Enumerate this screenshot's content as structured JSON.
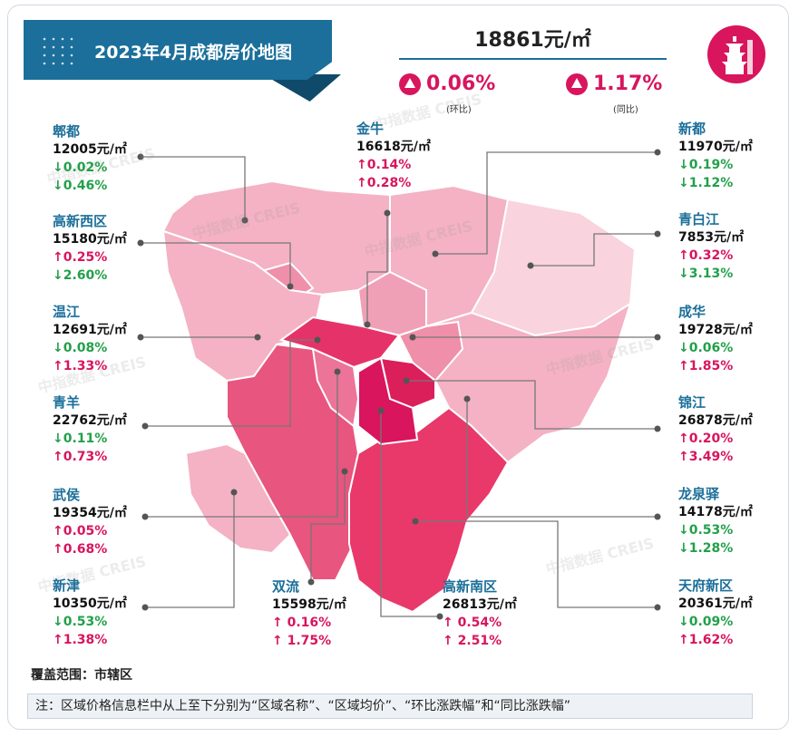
{
  "title": "2023年4月成都房价地图",
  "average_price": "18861元/㎡",
  "mom": {
    "value": "0.06%",
    "label": "(环比)"
  },
  "yoy": {
    "value": "1.17%",
    "label": "(同比)"
  },
  "watermark": "中指数据 CREIS",
  "coverage": "覆盖范围：市辖区",
  "note": "注：区域价格信息栏中从上至下分别为“区域名称”、“区域均价”、“环比涨跌幅”和“同比涨跌幅”",
  "colors": {
    "accent": "#d8155d",
    "title_bg": "#1b6f9a",
    "up": "#d8155d",
    "down": "#22a04a"
  },
  "chart_data": {
    "type": "choropleth-map",
    "unit": "元/㎡",
    "regions": [
      {
        "name": "郫都",
        "price": "12005元/㎡",
        "mom": "↓0.02%",
        "mom_dir": "down",
        "yoy": "↓0.46%",
        "yoy_dir": "down"
      },
      {
        "name": "高新西区",
        "price": "15180元/㎡",
        "mom": "↑0.25%",
        "mom_dir": "up",
        "yoy": "↓2.60%",
        "yoy_dir": "down"
      },
      {
        "name": "温江",
        "price": "12691元/㎡",
        "mom": "↓0.08%",
        "mom_dir": "down",
        "yoy": "↑1.33%",
        "yoy_dir": "up"
      },
      {
        "name": "青羊",
        "price": "22762元/㎡",
        "mom": "↓0.11%",
        "mom_dir": "down",
        "yoy": "↑0.73%",
        "yoy_dir": "up"
      },
      {
        "name": "武侯",
        "price": "19354元/㎡",
        "mom": "↑0.05%",
        "mom_dir": "up",
        "yoy": "↑0.68%",
        "yoy_dir": "up"
      },
      {
        "name": "新津",
        "price": "10350元/㎡",
        "mom": "↓0.53%",
        "mom_dir": "down",
        "yoy": "↑1.38%",
        "yoy_dir": "up"
      },
      {
        "name": "金牛",
        "price": "16618元/㎡",
        "mom": "↑0.14%",
        "mom_dir": "up",
        "yoy": "↑0.28%",
        "yoy_dir": "up"
      },
      {
        "name": "双流",
        "price": "15598元/㎡",
        "mom": "↑ 0.16%",
        "mom_dir": "up",
        "yoy": "↑ 1.75%",
        "yoy_dir": "up"
      },
      {
        "name": "高新南区",
        "price": "26813元/㎡",
        "mom": "↑ 0.54%",
        "mom_dir": "up",
        "yoy": "↑ 2.51%",
        "yoy_dir": "up"
      },
      {
        "name": "新都",
        "price": "11970元/㎡",
        "mom": "↓0.19%",
        "mom_dir": "down",
        "yoy": "↓1.12%",
        "yoy_dir": "down"
      },
      {
        "name": "青白江",
        "price": "7853元/㎡",
        "mom": "↑0.32%",
        "mom_dir": "up",
        "yoy": "↓3.13%",
        "yoy_dir": "down"
      },
      {
        "name": "成华",
        "price": "19728元/㎡",
        "mom": "↓0.06%",
        "mom_dir": "down",
        "yoy": "↑1.85%",
        "yoy_dir": "up"
      },
      {
        "name": "锦江",
        "price": "26878元/㎡",
        "mom": "↑0.20%",
        "mom_dir": "up",
        "yoy": "↑3.49%",
        "yoy_dir": "up"
      },
      {
        "name": "龙泉驿",
        "price": "14178元/㎡",
        "mom": "↓0.53%",
        "mom_dir": "down",
        "yoy": "↓1.28%",
        "yoy_dir": "down"
      },
      {
        "name": "天府新区",
        "price": "20361元/㎡",
        "mom": "↓0.09%",
        "mom_dir": "down",
        "yoy": "↑1.62%",
        "yoy_dir": "up"
      }
    ]
  }
}
